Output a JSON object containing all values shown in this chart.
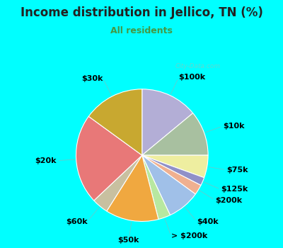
{
  "title": "Income distribution in Jellico, TN (%)",
  "subtitle": "All residents",
  "watermark": "City-Data.com",
  "bg_cyan": "#00FFFF",
  "bg_inner": "#d8ede0",
  "slices": [
    {
      "label": "$100k",
      "value": 14.0,
      "color": "#b3aed6"
    },
    {
      "label": "$10k",
      "value": 11.0,
      "color": "#a8c0a0"
    },
    {
      "label": "$75k",
      "value": 5.5,
      "color": "#eeeea0"
    },
    {
      "label": "$125k",
      "value": 2.0,
      "color": "#9090c8"
    },
    {
      "label": "$200k",
      "value": 2.5,
      "color": "#f0b090"
    },
    {
      "label": "$40k",
      "value": 8.0,
      "color": "#a0c0e8"
    },
    {
      "label": "> $200k",
      "value": 3.0,
      "color": "#b8e8a0"
    },
    {
      "label": "$50k",
      "value": 13.0,
      "color": "#f0a840"
    },
    {
      "label": "$60k",
      "value": 4.0,
      "color": "#c8c0a0"
    },
    {
      "label": "$20k",
      "value": 22.0,
      "color": "#e87878"
    },
    {
      "label": "$30k",
      "value": 15.0,
      "color": "#c8a830"
    }
  ],
  "label_fontsize": 8,
  "title_fontsize": 12,
  "subtitle_fontsize": 9,
  "title_color": "#222222",
  "subtitle_color": "#449944"
}
